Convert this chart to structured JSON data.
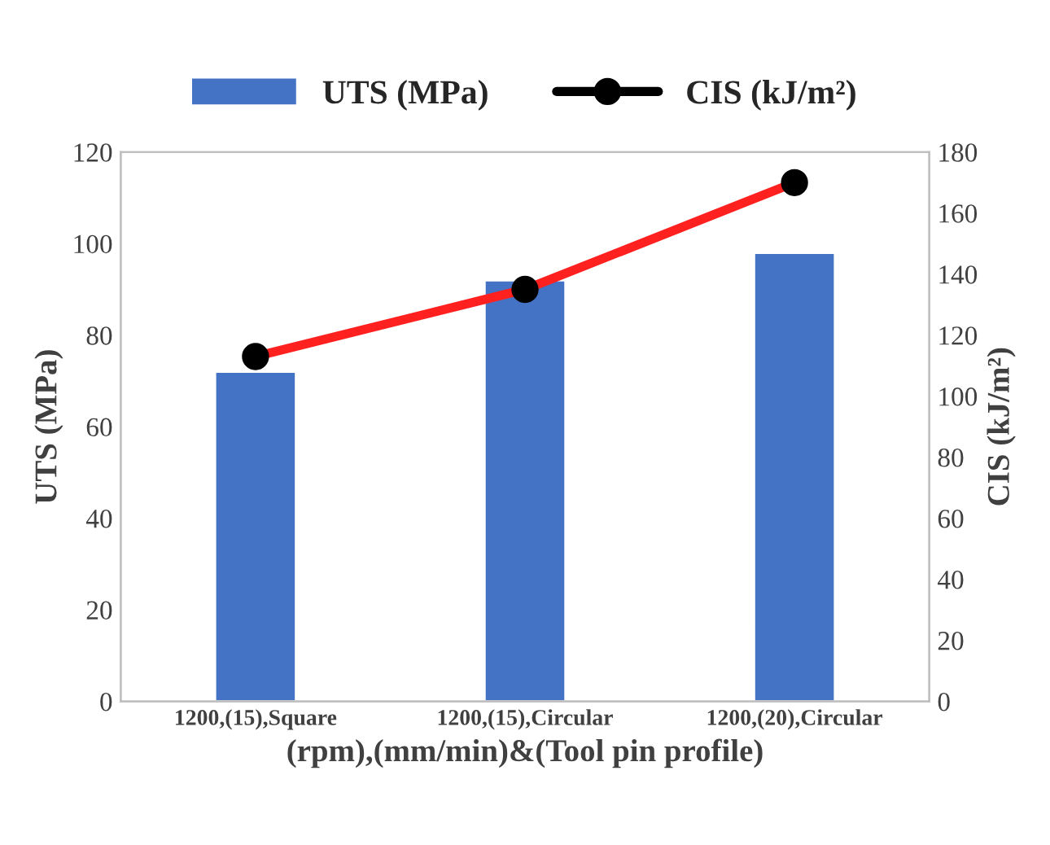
{
  "chart_data": {
    "type": "bar",
    "categories": [
      "1200,(15),Square",
      "1200,(15),Circular",
      "1200,(20),Circular"
    ],
    "xlabel": "(rpm),(mm/min)&(Tool pin profile)",
    "ylabel": "UTS (MPa)",
    "y2label": "CIS (kJ/m²)",
    "series": [
      {
        "name": "UTS (MPa)",
        "color": "#4472c4",
        "values": [
          72,
          92,
          98
        ]
      },
      {
        "name": "CIS (kJ/m²)",
        "type": "line",
        "axis": "y2",
        "color": "#ff2020",
        "marker": "circle",
        "values": [
          113,
          135,
          170
        ]
      }
    ],
    "ylim": [
      0,
      120
    ],
    "yticks": [
      0,
      20,
      40,
      60,
      80,
      100,
      120
    ],
    "y2lim": [
      0,
      180
    ],
    "y2ticks": [
      0,
      20,
      40,
      60,
      80,
      100,
      120,
      140,
      160,
      180
    ],
    "legend": "top",
    "grid": false
  }
}
